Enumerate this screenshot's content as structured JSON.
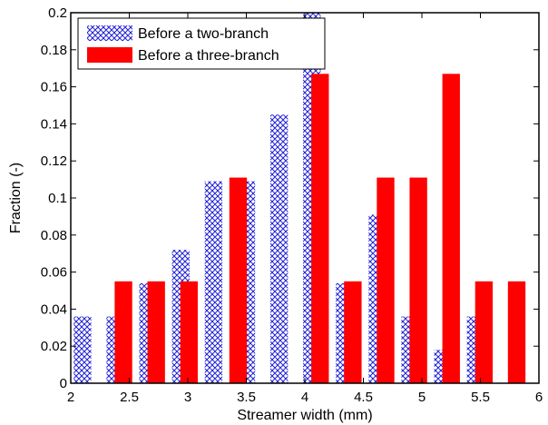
{
  "chart_data": {
    "type": "bar",
    "xlabel": "Streamer width (mm)",
    "ylabel": "Fraction (-)",
    "xlim": [
      2,
      6
    ],
    "ylim": [
      0,
      0.2
    ],
    "x_ticks": [
      "2",
      "2.5",
      "3",
      "3.5",
      "4",
      "4.5",
      "5",
      "5.5",
      "6"
    ],
    "y_ticks": [
      "0",
      "0.02",
      "0.04",
      "0.06",
      "0.08",
      "0.1",
      "0.12",
      "0.14",
      "0.16",
      "0.18",
      "0.2"
    ],
    "bar_width": 0.15,
    "legend_position": "top-left",
    "grid": false,
    "series": [
      {
        "name": "Before a two-branch",
        "style": "crosshatch",
        "color": "#1f1fd6",
        "x": [
          2.1,
          2.38,
          2.66,
          2.94,
          3.22,
          3.5,
          3.78,
          4.06,
          4.34,
          4.62,
          4.9,
          5.18,
          5.46
        ],
        "values": [
          0.036,
          0.036,
          0.054,
          0.072,
          0.109,
          0.109,
          0.145,
          0.2,
          0.054,
          0.091,
          0.036,
          0.018,
          0.036
        ]
      },
      {
        "name": "Before a three-branch",
        "style": "solid",
        "color": "#ff0000",
        "x": [
          2.45,
          2.73,
          3.01,
          3.43,
          4.13,
          4.41,
          4.69,
          4.97,
          5.25,
          5.53,
          5.81
        ],
        "values": [
          0.055,
          0.055,
          0.055,
          0.111,
          0.167,
          0.055,
          0.111,
          0.111,
          0.167,
          0.055,
          0.055
        ]
      }
    ]
  }
}
